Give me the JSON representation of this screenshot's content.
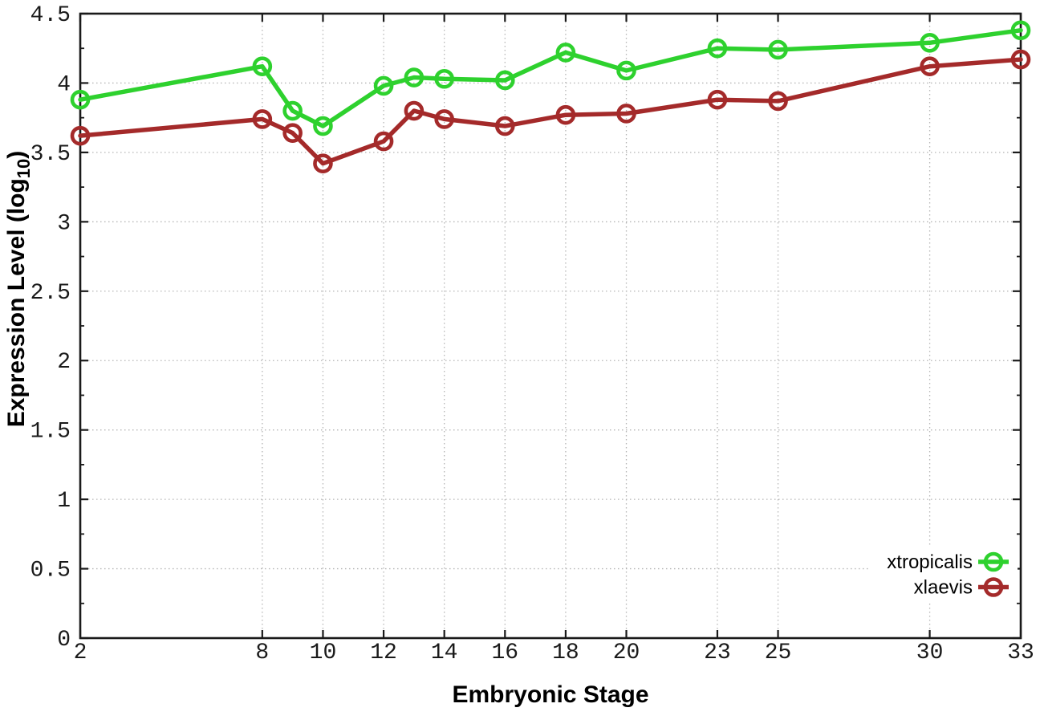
{
  "figure": {
    "background": "#ffffff",
    "axis_color": "#1a1a1a",
    "grid_color": "#b5b5b5",
    "tick_label_color": "#1a1a1a",
    "x_axis": {
      "title": "Embryonic Stage",
      "tick_values": [
        2,
        8,
        10,
        12,
        14,
        16,
        18,
        20,
        23,
        25,
        30,
        33
      ],
      "tick_labels": [
        "2",
        "8",
        "10",
        "12",
        "14",
        "16",
        "18",
        "20",
        "23",
        "25",
        "30",
        "33"
      ]
    },
    "y_axis": {
      "title_prefix": "Expression Level (log",
      "title_sub": "10",
      "title_suffix": ")",
      "tick_values": [
        0,
        0.5,
        1,
        1.5,
        2,
        2.5,
        3,
        3.5,
        4,
        4.5
      ],
      "tick_labels": [
        "0",
        "0.5",
        "1",
        "1.5",
        "2",
        "2.5",
        "3",
        "3.5",
        "4",
        "4.5"
      ],
      "minor_tick_step": 0.25
    }
  },
  "chart_data": {
    "type": "line",
    "x": [
      2,
      8,
      9,
      10,
      12,
      13,
      14,
      16,
      18,
      20,
      23,
      25,
      30,
      33
    ],
    "series": [
      {
        "name": "xtropicalis",
        "color": "#2ed12e",
        "marker": "open-circle",
        "values": [
          3.88,
          4.12,
          3.8,
          3.69,
          3.98,
          4.04,
          4.03,
          4.02,
          4.22,
          4.09,
          4.25,
          4.24,
          4.29,
          4.38
        ]
      },
      {
        "name": "xlaevis",
        "color": "#a42a2a",
        "marker": "open-circle",
        "values": [
          3.62,
          3.74,
          3.64,
          3.42,
          3.58,
          3.8,
          3.74,
          3.69,
          3.77,
          3.78,
          3.88,
          3.87,
          4.12,
          4.17
        ]
      }
    ],
    "title": "",
    "xlabel": "Embryonic Stage",
    "ylabel": "Expression Level (log10)",
    "xlim": [
      2,
      33
    ],
    "ylim": [
      0,
      4.5
    ],
    "grid": true,
    "legend_position": "inside-bottom-right"
  }
}
